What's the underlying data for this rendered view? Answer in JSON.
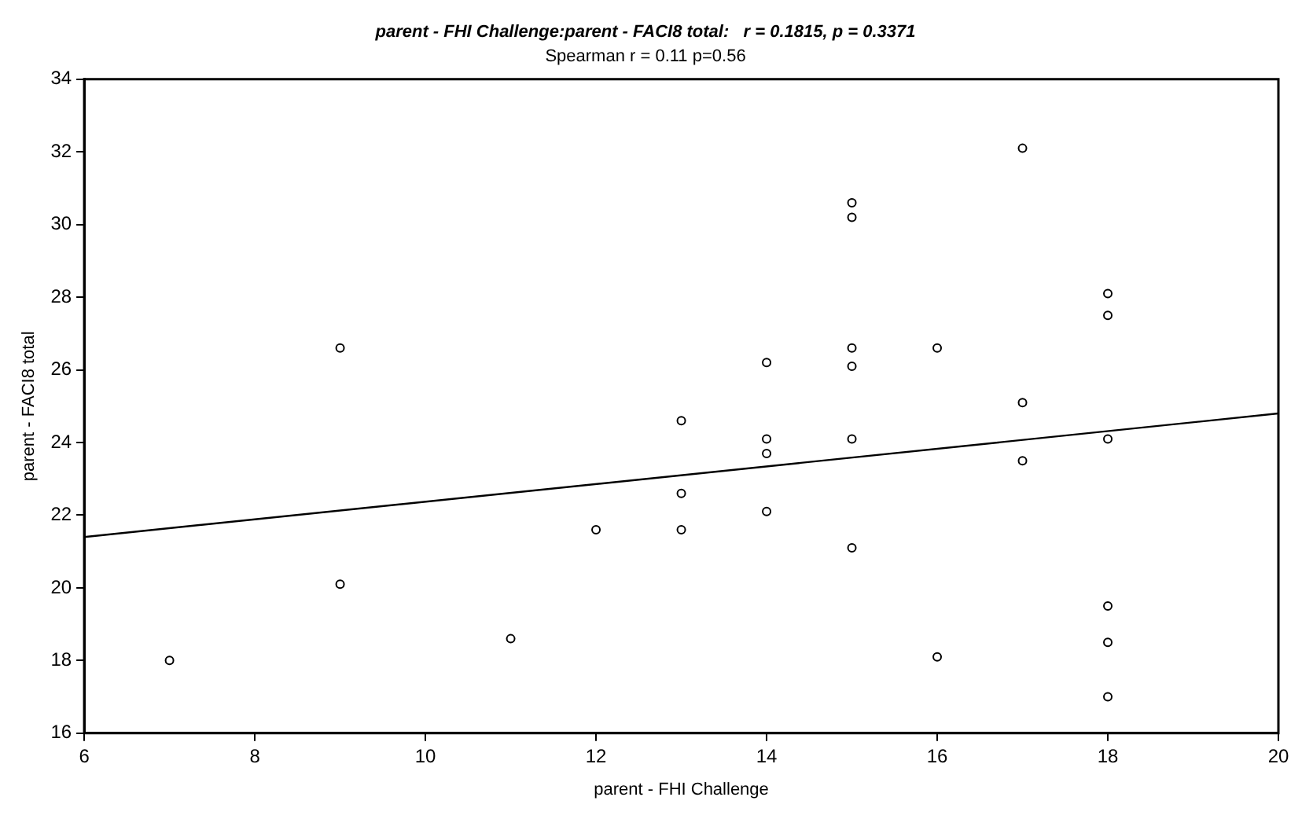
{
  "chart_data": {
    "type": "scatter",
    "title": "parent - FHI Challenge:parent - FACI8 total:   r = 0.1815, p = 0.3371",
    "subtitle": "Spearman r = 0.11 p=0.56",
    "xlabel": "parent - FHI Challenge",
    "ylabel": "parent - FACI8 total",
    "xlim": [
      6,
      20
    ],
    "xticks": [
      6,
      8,
      10,
      12,
      14,
      16,
      18,
      20
    ],
    "ylim": [
      16,
      34
    ],
    "yticks": [
      16,
      18,
      20,
      22,
      24,
      26,
      28,
      30,
      32,
      34
    ],
    "grid": false,
    "legend": false,
    "marker": "circle",
    "series": [
      {
        "type": "scatter",
        "color": "#000000",
        "x": [
          7,
          9,
          9,
          11,
          12,
          13,
          13,
          13,
          14,
          14,
          14,
          14,
          15,
          15,
          15,
          15,
          15,
          15,
          16,
          16,
          17,
          17,
          17,
          18,
          18,
          18,
          18,
          18,
          18
        ],
        "values": [
          18.0,
          26.6,
          20.1,
          18.6,
          21.6,
          24.6,
          22.6,
          21.6,
          26.2,
          24.1,
          23.7,
          22.1,
          30.6,
          30.2,
          26.6,
          26.1,
          24.1,
          21.1,
          26.6,
          18.1,
          32.1,
          25.1,
          23.5,
          28.1,
          27.5,
          24.1,
          19.5,
          18.5,
          17.0
        ]
      },
      {
        "type": "line",
        "color": "#000000",
        "marker": "none",
        "x": [
          6,
          20
        ],
        "values": [
          21.4,
          24.8
        ]
      }
    ]
  }
}
